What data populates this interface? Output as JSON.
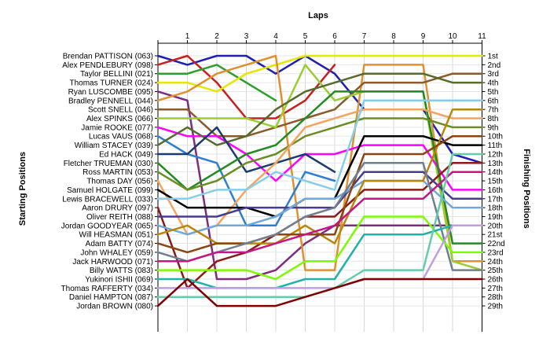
{
  "chart_data": {
    "type": "line",
    "title": "",
    "xlabel": "Laps",
    "ylabel_left": "Starting Positions",
    "ylabel_right": "Finishing Positions",
    "x": [
      0,
      1,
      2,
      3,
      4,
      5,
      6,
      7,
      8,
      9,
      10,
      11
    ],
    "x_ticks": [
      "1",
      "2",
      "3",
      "4",
      "5",
      "6",
      "7",
      "8",
      "9",
      "10",
      "11"
    ],
    "y_range": [
      1,
      29
    ],
    "y_inverted": true,
    "grid": true,
    "starting_labels": [
      "Brendan PATTISON (063)",
      "Alex PENDLEBURY (098)",
      "Taylor BELLINI (021)",
      "Thomas TURNER (024)",
      "Ryan LUSCOMBE (095)",
      "Bradley PENNELL (044)",
      "Scott SNELL (046)",
      "Alex SPINKS (066)",
      "Jamie ROOKE (077)",
      "Lucas VAUS (068)",
      "William STACEY (039)",
      "Ed HACK (049)",
      "Fletcher TRUEMAN (030)",
      "Ross MARTIN (053)",
      "Thomas DAY (056)",
      "Samuel HOLGATE (099)",
      "Lewis BRACEWELL (033)",
      "Aaron DRURY (097)",
      "Oliver REITH (088)",
      "Jordan GOODYEAR (065)",
      "Will HEASMAN (051)",
      "Adam BATTY (074)",
      "John WHALEY (059)",
      "Jack HARWOOD (071)",
      "Billy WATTS (083)",
      "Yukinori ISHII (069)",
      "Thomas RAFFERTY (034)",
      "Daniel HAMPTON (087)",
      "Jordan BROWN (080)"
    ],
    "finishing_labels": [
      "1st",
      "2nd",
      "3rd",
      "4th",
      "5th",
      "6th",
      "7th",
      "8th",
      "9th",
      "10th",
      "11th",
      "12th",
      "13th",
      "14th",
      "15th",
      "16th",
      "17th",
      "18th",
      "19th",
      "20th",
      "21st",
      "22nd",
      "23rd",
      "24th",
      "25th",
      "26th",
      "27th",
      "28th",
      "29th"
    ],
    "series": [
      {
        "color": "#1f1fb4",
        "values": [
          1,
          2,
          1,
          1,
          3,
          1,
          3,
          7,
          7,
          7,
          12,
          13
        ]
      },
      {
        "color": "#c82020",
        "values": [
          2,
          1,
          4,
          8,
          8,
          6,
          2,
          null,
          null,
          null,
          null,
          null
        ]
      },
      {
        "color": "#2ca02c",
        "values": [
          3,
          3,
          2,
          4,
          6,
          null,
          null,
          null,
          null,
          null,
          null,
          null
        ]
      },
      {
        "color": "#e6e600",
        "values": [
          4,
          4,
          5,
          3,
          2,
          1,
          1,
          1,
          1,
          1,
          1,
          1
        ]
      },
      {
        "color": "#7f2b7f",
        "values": [
          5,
          6,
          26,
          26,
          25,
          22,
          20,
          20,
          20,
          20,
          20,
          20
        ]
      },
      {
        "color": "#e0902e",
        "values": [
          6,
          5,
          3,
          2,
          1,
          25,
          25,
          2,
          2,
          2,
          24,
          24
        ]
      },
      {
        "color": "#8b5a2b",
        "values": [
          7,
          7,
          10,
          10,
          9,
          8,
          7,
          4,
          4,
          4,
          3,
          3
        ]
      },
      {
        "color": "#9acd32",
        "values": [
          8,
          8,
          8,
          8,
          9,
          2,
          6,
          5,
          5,
          5,
          24,
          25
        ]
      },
      {
        "color": "#ff00ff",
        "values": [
          9,
          10,
          10,
          12,
          15,
          12,
          12,
          11,
          11,
          11,
          16,
          16
        ]
      },
      {
        "color": "#2f7fd0",
        "values": [
          10,
          12,
          13,
          20,
          20,
          14,
          15,
          null,
          null,
          null,
          null,
          null
        ]
      },
      {
        "color": "#556b2f",
        "values": [
          11,
          9,
          11,
          10,
          7,
          5,
          4,
          3,
          3,
          3,
          4,
          4
        ]
      },
      {
        "color": "#1c3c6e",
        "values": [
          12,
          12,
          9,
          14,
          13,
          12,
          14,
          null,
          null,
          null,
          null,
          null
        ]
      },
      {
        "color": "#228b22",
        "values": [
          13,
          16,
          14,
          12,
          11,
          8,
          5,
          5,
          5,
          5,
          22,
          22
        ]
      },
      {
        "color": "#6b8e23",
        "values": [
          14,
          16,
          15,
          13,
          12,
          10,
          9,
          8,
          8,
          8,
          9,
          9
        ]
      },
      {
        "color": "#f4a460",
        "values": [
          15,
          21,
          20,
          16,
          13,
          9,
          8,
          7,
          7,
          7,
          8,
          8
        ]
      },
      {
        "color": "#000000",
        "values": [
          16,
          18,
          18,
          18,
          19,
          17,
          17,
          10,
          10,
          10,
          11,
          11
        ]
      },
      {
        "color": "#87ceeb",
        "values": [
          17,
          17,
          16,
          16,
          14,
          15,
          16,
          6,
          6,
          6,
          6,
          6
        ]
      },
      {
        "color": "#8b1a1a",
        "values": [
          18,
          27,
          24,
          23,
          21,
          19,
          19,
          16,
          16,
          16,
          13,
          13
        ]
      },
      {
        "color": "#483d8b",
        "values": [
          19,
          19,
          19,
          18,
          18,
          18,
          18,
          14,
          14,
          14,
          17,
          17
        ]
      },
      {
        "color": "#6fa8dc",
        "values": [
          20,
          21,
          20,
          20,
          19,
          17,
          17,
          15,
          15,
          15,
          18,
          18
        ]
      },
      {
        "color": "#b8860b",
        "values": [
          21,
          20,
          22,
          22,
          22,
          20,
          22,
          15,
          15,
          15,
          7,
          7
        ]
      },
      {
        "color": "#8b4513",
        "values": [
          22,
          23,
          22,
          22,
          21,
          21,
          21,
          12,
          12,
          12,
          10,
          10
        ]
      },
      {
        "color": "#708090",
        "values": [
          23,
          24,
          23,
          22,
          21,
          19,
          18,
          13,
          13,
          13,
          25,
          25
        ]
      },
      {
        "color": "#c71585",
        "values": [
          24,
          24,
          23,
          23,
          22,
          21,
          20,
          17,
          17,
          17,
          14,
          14
        ]
      },
      {
        "color": "#7cfc00",
        "values": [
          25,
          25,
          25,
          25,
          26,
          24,
          24,
          19,
          19,
          19,
          23,
          23
        ]
      },
      {
        "color": "#20b2aa",
        "values": [
          26,
          26,
          27,
          27,
          27,
          26,
          26,
          21,
          21,
          21,
          20,
          20
        ]
      },
      {
        "color": "#bf9fdf",
        "values": [
          27,
          27,
          27,
          27,
          27,
          27,
          27,
          26,
          26,
          26,
          20,
          20
        ]
      },
      {
        "color": "#66cdaa",
        "values": [
          28,
          28,
          28,
          28,
          28,
          28,
          27,
          25,
          25,
          25,
          12,
          12
        ]
      },
      {
        "color": "#800000",
        "values": [
          29,
          26,
          29,
          29,
          29,
          28,
          27,
          26,
          26,
          26,
          26,
          26
        ]
      }
    ]
  }
}
